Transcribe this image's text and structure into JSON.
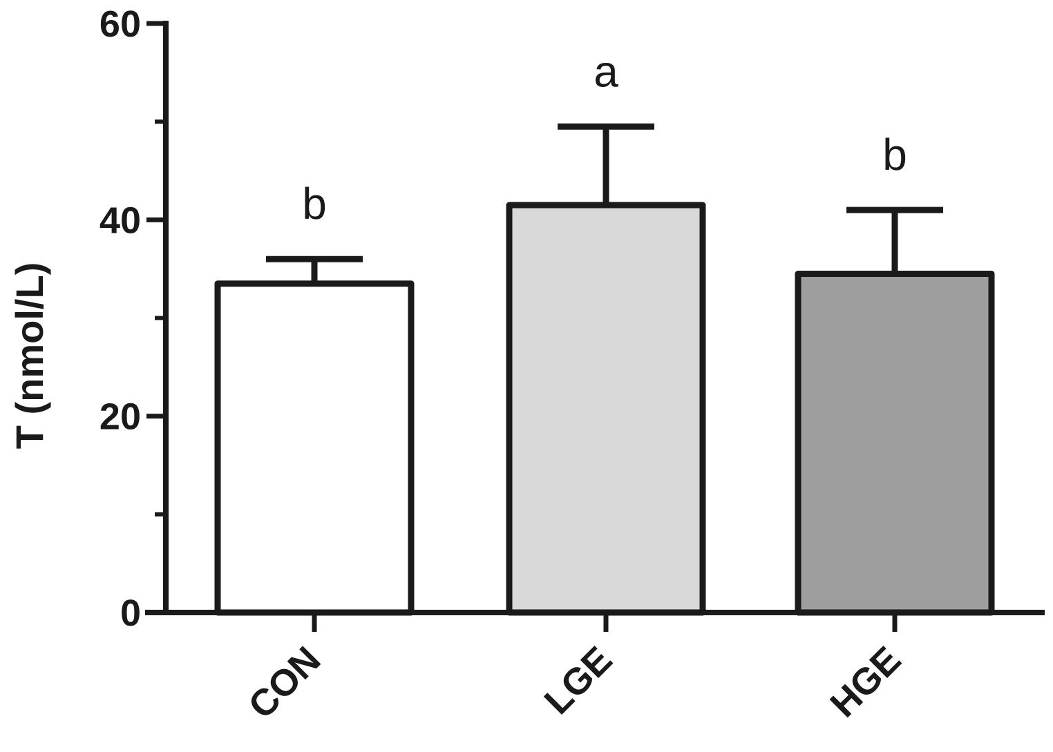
{
  "chart_data": {
    "type": "bar",
    "categories": [
      "CON",
      "LGE",
      "HGE"
    ],
    "values": [
      33.5,
      41.5,
      34.5
    ],
    "errors": [
      2.5,
      8.0,
      6.5
    ],
    "significance": [
      "b",
      "a",
      "b"
    ],
    "bar_colors": [
      "#ffffff",
      "#d9d9d9",
      "#9e9e9e"
    ],
    "xlabel": "",
    "ylabel": "T (nmol/L)",
    "ylim": [
      0,
      60
    ],
    "yticks_major": [
      0,
      20,
      40,
      60
    ],
    "yticks_major_labels": [
      "0",
      "20",
      "40",
      "60"
    ],
    "yticks_minor": [
      10,
      30,
      50
    ],
    "grid": false,
    "legend": "none"
  }
}
